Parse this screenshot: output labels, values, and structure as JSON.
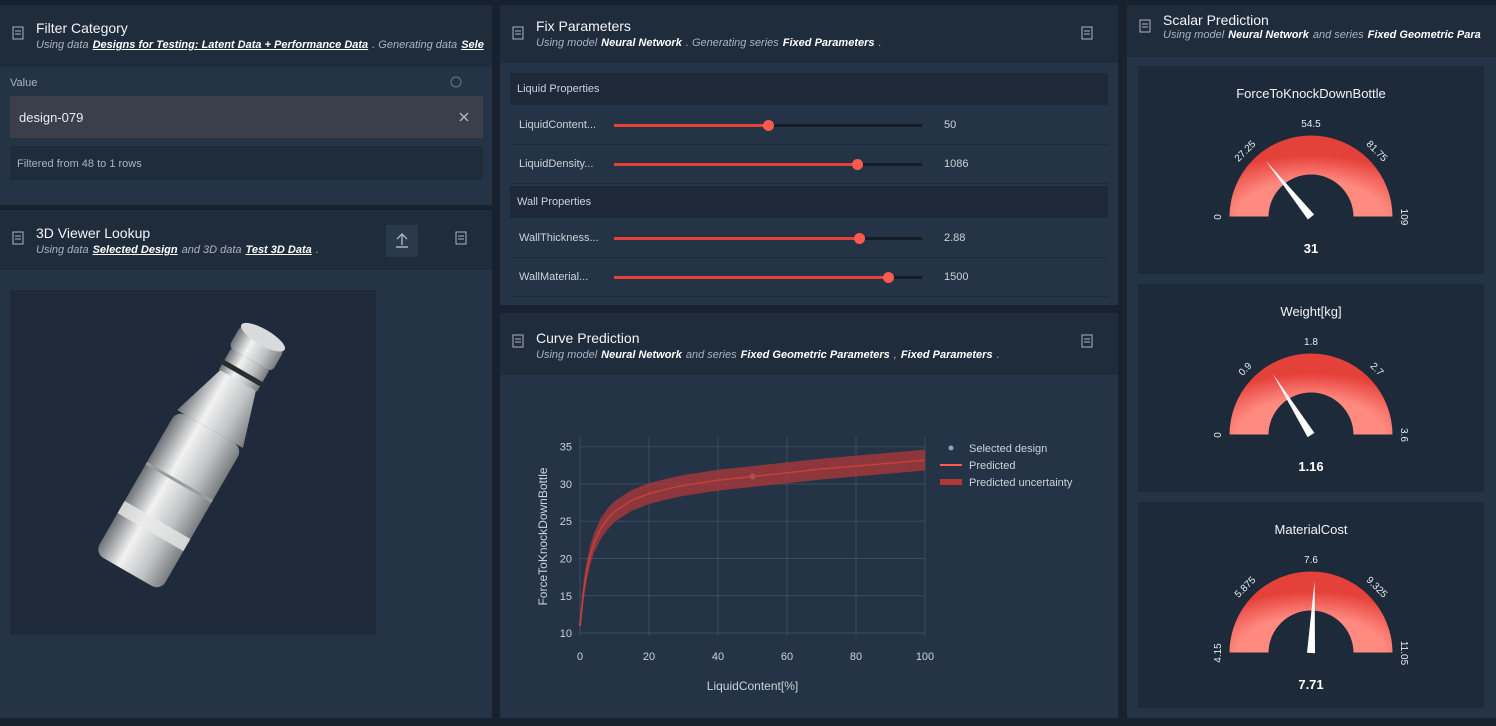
{
  "filter": {
    "title": "Filter Category",
    "subtitle": [
      "Using data",
      "Designs for Testing: Latent Data + Performance Data",
      ". Generating data",
      "Sele"
    ],
    "value_label": "Value",
    "value": "design-079",
    "status": "Filtered from 48 to 1 rows"
  },
  "viewer": {
    "title": "3D Viewer Lookup",
    "subtitle": [
      "Using data",
      "Selected Design",
      "and 3D data",
      "Test 3D Data",
      "."
    ]
  },
  "fix_parameters": {
    "title": "Fix Parameters",
    "subtitle": [
      "Using model",
      "Neural Network",
      ". Generating series",
      "Fixed Parameters",
      "."
    ],
    "groups": [
      {
        "name": "Liquid Properties",
        "sliders": [
          {
            "label": "LiquidContent...",
            "value": "50"
          },
          {
            "label": "LiquidDensity...",
            "value": "1086"
          }
        ]
      },
      {
        "name": "Wall Properties",
        "sliders": [
          {
            "label": "WallThickness...",
            "value": "2.88"
          },
          {
            "label": "WallMaterial...",
            "value": "1500"
          }
        ]
      }
    ]
  },
  "curve_prediction": {
    "title": "Curve Prediction",
    "subtitle": [
      "Using model",
      "Neural Network",
      "and series",
      "Fixed Geometric Parameters",
      ",",
      "Fixed Parameters",
      "."
    ]
  },
  "scalar_prediction": {
    "title": "Scalar Prediction",
    "subtitle": [
      "Using model",
      "Neural Network",
      "and series",
      "Fixed Geometric Para"
    ]
  },
  "chart_data": [
    {
      "type": "line",
      "x_label": "LiquidContent[%]",
      "y_label": "ForceToKnockDownBottle",
      "x": [
        0,
        1,
        2,
        3,
        4,
        6,
        8,
        10,
        15,
        20,
        25,
        30,
        40,
        50,
        60,
        70,
        80,
        90,
        100
      ],
      "xlim": [
        0,
        100
      ],
      "xticks": [
        0,
        20,
        40,
        60,
        80,
        100
      ],
      "ylim": [
        9.6,
        36.3
      ],
      "yticks": [
        10,
        15,
        20,
        25,
        30,
        35
      ],
      "grid": true,
      "series": [
        {
          "name": "Selected design",
          "color": "#8fa3b8",
          "x": [
            50
          ],
          "values": [
            31
          ]
        },
        {
          "name": "Predicted",
          "color": "#ff5a4e",
          "values": [
            11,
            15.5,
            18.5,
            20.5,
            22,
            24,
            25.3,
            26.3,
            27.8,
            28.7,
            29.3,
            29.8,
            30.5,
            31,
            31.5,
            32,
            32.4,
            32.8,
            33.2
          ]
        },
        {
          "name": "Predicted uncertainty",
          "color": "#b03838",
          "upper": [
            12,
            16.8,
            19.8,
            21.8,
            23.3,
            25.4,
            26.7,
            27.7,
            29.2,
            30.1,
            30.7,
            31.2,
            31.9,
            32.4,
            32.9,
            33.4,
            33.8,
            34.2,
            34.6
          ],
          "lower": [
            10,
            14.2,
            17.2,
            19.2,
            20.7,
            22.6,
            23.9,
            24.9,
            26.4,
            27.3,
            27.9,
            28.4,
            29.1,
            29.6,
            30.1,
            30.6,
            31,
            31.4,
            31.8
          ]
        }
      ]
    },
    {
      "type": "gauge",
      "title": "ForceToKnockDownBottle",
      "value": 31,
      "range": [
        0,
        109
      ],
      "ticks": [
        0,
        27.25,
        54.5,
        81.75,
        109
      ],
      "color": "#e5413b"
    },
    {
      "type": "gauge",
      "title": "Weight[kg]",
      "value": 1.16,
      "range": [
        0,
        3.6
      ],
      "ticks": [
        0,
        0.9,
        1.8,
        2.7,
        3.6
      ],
      "color": "#e5413b"
    },
    {
      "type": "gauge",
      "title": "MaterialCost",
      "value": 7.71,
      "range": [
        4.15,
        11.05
      ],
      "ticks": [
        4.15,
        5.875,
        7.6,
        9.325,
        11.05
      ],
      "color": "#e5413b"
    }
  ]
}
